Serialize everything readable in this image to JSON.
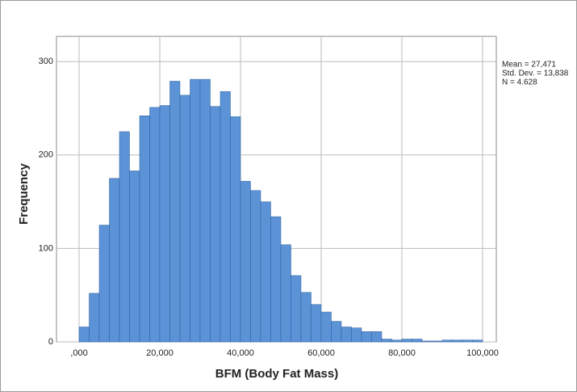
{
  "chart_data": {
    "type": "histogram",
    "xlabel": "BFM (Body Fat Mass)",
    "ylabel": "Frequency",
    "annotations": [
      "Mean = 27,471",
      "Std. Dev. = 13,838",
      "N = 4.628"
    ],
    "bins": [
      0,
      2500,
      5000,
      7500,
      10000,
      12500,
      15000,
      17500,
      20000,
      22500,
      25000,
      27500,
      30000,
      32500,
      35000,
      37500,
      40000,
      42500,
      45000,
      47500,
      50000,
      52500,
      55000,
      57500,
      60000,
      62500,
      65000,
      67500,
      70000,
      72500,
      75000,
      77500,
      80000,
      82500,
      85000,
      87500,
      90000,
      92500,
      95000,
      97500,
      100000
    ],
    "values": [
      16,
      52,
      125,
      175,
      225,
      183,
      242,
      251,
      253,
      279,
      264,
      281,
      281,
      252,
      268,
      241,
      172,
      162,
      150,
      134,
      104,
      71,
      53,
      40,
      32,
      22,
      16,
      15,
      11,
      11,
      3,
      2,
      3,
      3,
      1,
      1,
      2,
      2,
      2,
      2
    ],
    "color": "#5b93d6",
    "edgecolor": "#2f5f9e",
    "xlim": [
      -5600,
      103400
    ],
    "ylim": [
      0,
      327
    ],
    "xticks": [
      {
        "value": 0,
        "label": ",000"
      },
      {
        "value": 20000,
        "label": "20,000"
      },
      {
        "value": 40000,
        "label": "40,000"
      },
      {
        "value": 60000,
        "label": "60,000"
      },
      {
        "value": 80000,
        "label": "80,000"
      },
      {
        "value": 100000,
        "label": "100,000"
      }
    ],
    "yticks": [
      0,
      100,
      200,
      300
    ],
    "grid": true
  }
}
